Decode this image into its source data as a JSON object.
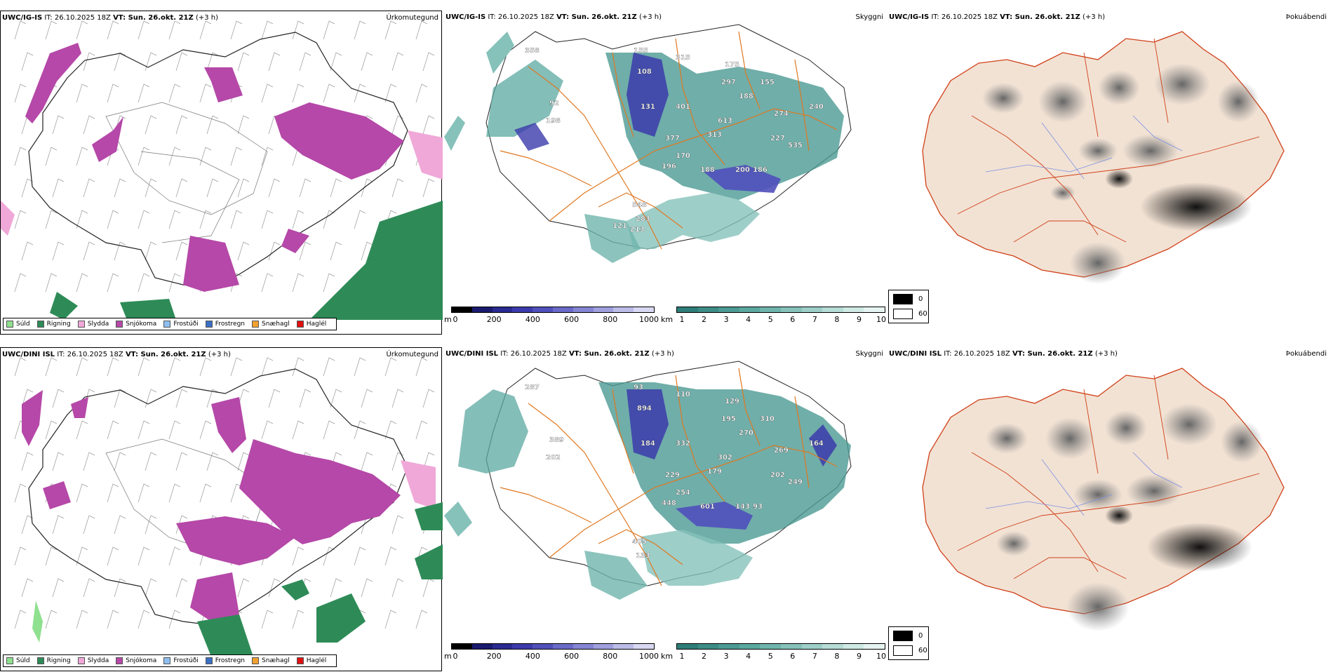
{
  "header_parts": {
    "it_prefix": "IT: ",
    "vt_prefix": "VT: ",
    "lead": "(+3 h)"
  },
  "rows": [
    {
      "model": "UWC/IG-IS",
      "it": "26.10.2025 18Z",
      "vt": "Sun. 26.okt. 21Z"
    },
    {
      "model": "UWC/DINI ISL",
      "it": "26.10.2025 18Z",
      "vt": "Sun. 26.okt. 21Z"
    }
  ],
  "panel_titles": {
    "precip": "Úrkomutegund",
    "visibility": "Skyggni",
    "fog": "Þokuábendi"
  },
  "precip_legend": [
    {
      "label": "Súld",
      "color": "#8fe08f"
    },
    {
      "label": "Rigning",
      "color": "#2e8b57"
    },
    {
      "label": "Slydda",
      "color": "#f0a8d8"
    },
    {
      "label": "Snjókoma",
      "color": "#b548a8"
    },
    {
      "label": "Frostúði",
      "color": "#8fbff0"
    },
    {
      "label": "Frostregn",
      "color": "#3a6fc4"
    },
    {
      "label": "Snæhagl",
      "color": "#f0a030"
    },
    {
      "label": "Haglél",
      "color": "#e01010"
    }
  ],
  "ceiling_bar": {
    "unit": "m",
    "ticks": [
      "0",
      "200",
      "400",
      "600",
      "800",
      "1000"
    ],
    "colors": [
      "#000000",
      "#1a1a6e",
      "#2a2a90",
      "#3b3bac",
      "#5050bb",
      "#6a6ac8",
      "#8585d4",
      "#a0a0de",
      "#bcbce8",
      "#d8d8f2"
    ]
  },
  "visibility_bar": {
    "unit": "km",
    "ticks": [
      "1",
      "2",
      "3",
      "4",
      "5",
      "6",
      "7",
      "8",
      "9",
      "10"
    ],
    "colors": [
      "#2f7d78",
      "#3d8c86",
      "#4c9a93",
      "#5ba8a0",
      "#6fb5ad",
      "#86c2ba",
      "#9dcfc8",
      "#b6ddd6",
      "#cfeae4",
      "#e6f4f1"
    ]
  },
  "fog_legend": [
    {
      "label": "0",
      "color": "#000000"
    },
    {
      "label": "60",
      "color": "#ffffff"
    }
  ],
  "ceiling_labels": {
    "top": [
      "358",
      "155",
      "108",
      "315",
      "175",
      "297",
      "188",
      "155",
      "92",
      "198",
      "131",
      "401",
      "613",
      "274",
      "240",
      "377",
      "313",
      "227",
      "535",
      "170",
      "196",
      "188",
      "200",
      "186",
      "548",
      "283",
      "121",
      "213"
    ],
    "bottom": [
      "287",
      "93",
      "894",
      "110",
      "129",
      "195",
      "270",
      "310",
      "389",
      "202",
      "184",
      "332",
      "302",
      "269",
      "164",
      "229",
      "179",
      "202",
      "249",
      "254",
      "448",
      "601",
      "143",
      "93",
      "405",
      "133"
    ]
  }
}
